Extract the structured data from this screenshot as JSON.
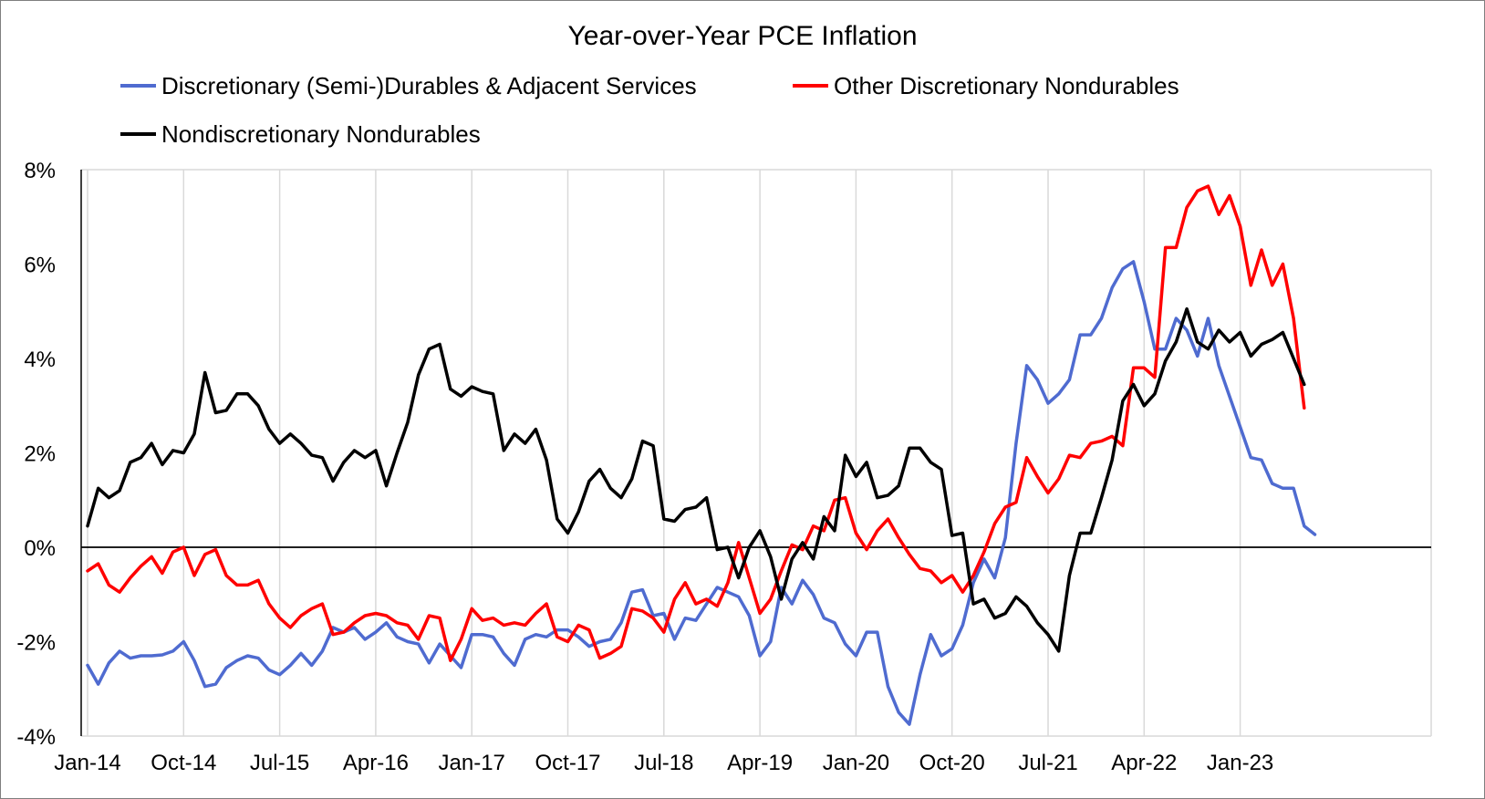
{
  "chart_data": {
    "type": "line",
    "title": "Year-over-Year PCE Inflation",
    "xlabel": "",
    "ylabel": "",
    "ylim": [
      -4,
      8
    ],
    "y_ticks": [
      -4,
      -2,
      0,
      2,
      4,
      6,
      8
    ],
    "y_tick_labels": [
      "-4%",
      "-2%",
      "0%",
      "2%",
      "4%",
      "6%",
      "8%"
    ],
    "x_tick_labels": [
      "Jan-14",
      "Oct-14",
      "Jul-15",
      "Apr-16",
      "Jan-17",
      "Oct-17",
      "Jul-18",
      "Apr-19",
      "Jan-20",
      "Oct-20",
      "Jul-21",
      "Apr-22",
      "Jan-23"
    ],
    "x_tick_index": [
      0,
      9,
      18,
      27,
      36,
      45,
      54,
      63,
      72,
      81,
      90,
      99,
      108
    ],
    "x_start": "Jan-14",
    "x_frequency": "monthly",
    "grid": "vertical",
    "legend_position": "top",
    "series": [
      {
        "name": "Discretionary (Semi-)Durables & Adjacent Services",
        "color": "#4f6bd0",
        "values": [
          -2.5,
          -2.9,
          -2.45,
          -2.2,
          -2.35,
          -2.3,
          -2.3,
          -2.28,
          -2.2,
          -2.0,
          -2.4,
          -2.95,
          -2.9,
          -2.55,
          -2.4,
          -2.3,
          -2.35,
          -2.6,
          -2.7,
          -2.5,
          -2.25,
          -2.5,
          -2.2,
          -1.7,
          -1.8,
          -1.7,
          -1.95,
          -1.8,
          -1.6,
          -1.9,
          -2.0,
          -2.05,
          -2.45,
          -2.05,
          -2.3,
          -2.55,
          -1.85,
          -1.85,
          -1.9,
          -2.25,
          -2.5,
          -1.95,
          -1.85,
          -1.9,
          -1.75,
          -1.75,
          -1.9,
          -2.1,
          -2.0,
          -1.95,
          -1.6,
          -0.95,
          -0.9,
          -1.45,
          -1.4,
          -1.95,
          -1.5,
          -1.55,
          -1.2,
          -0.85,
          -0.95,
          -1.05,
          -1.45,
          -2.3,
          -2.0,
          -0.85,
          -1.2,
          -0.7,
          -1.0,
          -1.5,
          -1.6,
          -2.05,
          -2.3,
          -1.8,
          -1.8,
          -2.95,
          -3.5,
          -3.75,
          -2.7,
          -1.85,
          -2.3,
          -2.15,
          -1.65,
          -0.75,
          -0.25,
          -0.65,
          0.2,
          2.2,
          3.85,
          3.55,
          3.05,
          3.25,
          3.55,
          4.5,
          4.5,
          4.85,
          5.5,
          5.9,
          6.05,
          5.2,
          4.2,
          4.2,
          4.85,
          4.6,
          4.05,
          4.85,
          3.85,
          3.2,
          2.55,
          1.9,
          1.85,
          1.35,
          1.25,
          1.25,
          0.45,
          0.27
        ]
      },
      {
        "name": "Other Discretionary Nondurables",
        "color": "#ff0000",
        "values": [
          -0.5,
          -0.35,
          -0.8,
          -0.95,
          -0.65,
          -0.4,
          -0.2,
          -0.55,
          -0.1,
          0.0,
          -0.6,
          -0.15,
          -0.05,
          -0.6,
          -0.8,
          -0.8,
          -0.7,
          -1.2,
          -1.5,
          -1.7,
          -1.45,
          -1.3,
          -1.2,
          -1.85,
          -1.8,
          -1.6,
          -1.45,
          -1.4,
          -1.45,
          -1.6,
          -1.65,
          -1.95,
          -1.45,
          -1.5,
          -2.4,
          -1.95,
          -1.3,
          -1.55,
          -1.5,
          -1.65,
          -1.6,
          -1.65,
          -1.4,
          -1.2,
          -1.9,
          -2.0,
          -1.65,
          -1.75,
          -2.35,
          -2.25,
          -2.1,
          -1.3,
          -1.35,
          -1.5,
          -1.8,
          -1.1,
          -0.75,
          -1.2,
          -1.1,
          -1.25,
          -0.75,
          0.1,
          -0.65,
          -1.4,
          -1.1,
          -0.5,
          0.05,
          -0.05,
          0.45,
          0.35,
          1.0,
          1.05,
          0.3,
          -0.05,
          0.35,
          0.6,
          0.2,
          -0.15,
          -0.45,
          -0.5,
          -0.75,
          -0.6,
          -0.95,
          -0.6,
          -0.1,
          0.5,
          0.85,
          0.95,
          1.9,
          1.5,
          1.15,
          1.45,
          1.95,
          1.9,
          2.2,
          2.25,
          2.35,
          2.15,
          3.8,
          3.8,
          3.6,
          6.35,
          6.35,
          7.2,
          7.55,
          7.65,
          7.05,
          7.45,
          6.8,
          5.55,
          6.3,
          5.55,
          6.0,
          4.85,
          2.95
        ]
      },
      {
        "name": "Nondiscretionary Nondurables",
        "color": "#000000",
        "values": [
          0.45,
          1.25,
          1.05,
          1.2,
          1.8,
          1.9,
          2.2,
          1.75,
          2.05,
          2.0,
          2.4,
          3.7,
          2.85,
          2.9,
          3.25,
          3.25,
          3.0,
          2.5,
          2.2,
          2.4,
          2.2,
          1.95,
          1.9,
          1.4,
          1.8,
          2.05,
          1.9,
          2.05,
          1.3,
          2.0,
          2.65,
          3.65,
          4.2,
          4.3,
          3.35,
          3.2,
          3.4,
          3.3,
          3.25,
          2.05,
          2.4,
          2.2,
          2.5,
          1.85,
          0.6,
          0.3,
          0.75,
          1.4,
          1.65,
          1.25,
          1.05,
          1.45,
          2.25,
          2.15,
          0.6,
          0.55,
          0.8,
          0.85,
          1.05,
          -0.05,
          0.0,
          -0.65,
          0.0,
          0.35,
          -0.2,
          -1.1,
          -0.25,
          0.1,
          -0.25,
          0.65,
          0.35,
          1.95,
          1.5,
          1.8,
          1.05,
          1.1,
          1.3,
          2.1,
          2.1,
          1.8,
          1.65,
          0.25,
          0.3,
          -1.2,
          -1.1,
          -1.5,
          -1.4,
          -1.05,
          -1.25,
          -1.6,
          -1.85,
          -2.2,
          -0.6,
          0.3,
          0.3,
          1.05,
          1.85,
          3.1,
          3.45,
          3.0,
          3.25,
          3.95,
          4.35,
          5.05,
          4.35,
          4.2,
          4.6,
          4.35,
          4.55,
          4.05,
          4.3,
          4.4,
          4.55,
          4.0,
          3.45
        ]
      }
    ]
  }
}
